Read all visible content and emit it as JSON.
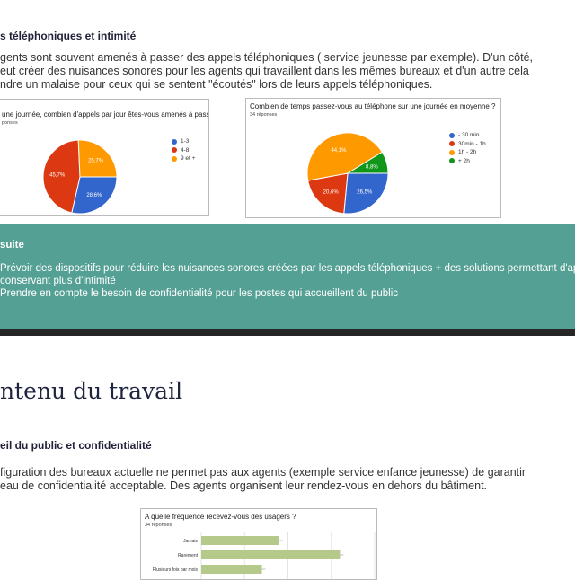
{
  "section1": {
    "heading": "s téléphoniques et intimité",
    "paragraph": [
      "gents sont souvent amenés à passer des appels téléphoniques ( service jeunesse par exemple). D'un côté,",
      "eut créer des nuisances sonores pour les agents qui travaillent dans les mêmes bureaux et d'un autre cela",
      "ndre un malaise pour ceux qui se sentent \"écoutés\" lors de leurs appels téléphoniques."
    ]
  },
  "chart_data": [
    {
      "type": "pie",
      "title": "une journée, combien d'appels par jour êtes-vous amenés à passer ?",
      "subtitle": "ponses",
      "categories": [
        "1-3",
        "4-8",
        "9 et +"
      ],
      "values": [
        28.6,
        45.7,
        25.7
      ],
      "labels": [
        "28,6%",
        "45,7%",
        "25,7%"
      ],
      "colors": [
        "#3366cc",
        "#dc3912",
        "#ff9900"
      ],
      "legend": "right"
    },
    {
      "type": "pie",
      "title": "Combien de temps passez-vous au téléphone sur une journée en moyenne ?",
      "subtitle": "34 réponses",
      "categories": [
        "- 30 min",
        "30min - 1h",
        "1h - 2h",
        "+ 2h"
      ],
      "values": [
        26.5,
        20.6,
        44.1,
        8.8
      ],
      "labels": [
        "26,5%",
        "20,6%",
        "44,1%",
        "8,8%"
      ],
      "colors": [
        "#3366cc",
        "#dc3912",
        "#ff9900",
        "#109618"
      ],
      "legend": "right"
    },
    {
      "type": "bar",
      "orientation": "horizontal",
      "title": "A quelle fréquence recevez-vous des usagers ?",
      "subtitle": "34 réponses",
      "categories": [
        "Jamais",
        "Rarement",
        "Plusieurs fois par mois"
      ],
      "values": [
        9,
        16,
        7
      ],
      "xlim": [
        0,
        20
      ],
      "grid": true,
      "color": "#b5c98a"
    }
  ],
  "suite": {
    "heading": "suite",
    "lines": [
      "Prévoir des dispositifs pour réduire les nuisances sonores créées par les  appels téléphoniques + des solutions permettant d'appe",
      "conservant plus d'intimité",
      "Prendre en compte le besoin de confidentialité pour les postes qui accueillent du public"
    ],
    "color": "#55a094"
  },
  "section2": {
    "title": "ntenu du travail",
    "heading": "eil du public et confidentialité",
    "paragraph": [
      "figuration des bureaux actuelle ne permet pas aux agents  (exemple service enfance jeunesse) de garantir",
      "eau de confidentialité acceptable. Des agents organisent leur rendez-vous en dehors du bâtiment."
    ]
  }
}
